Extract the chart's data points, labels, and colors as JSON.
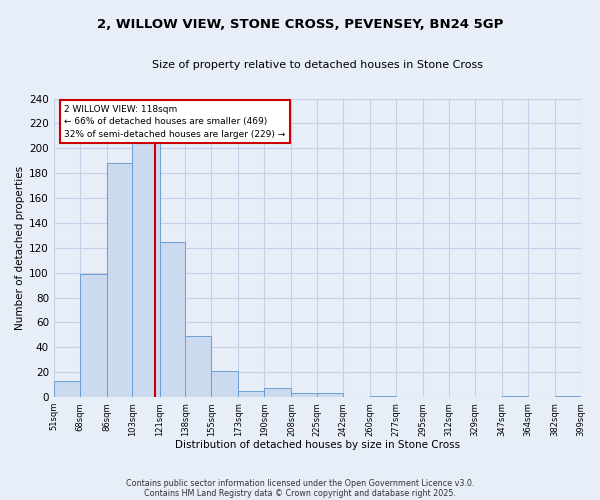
{
  "title_line1": "2, WILLOW VIEW, STONE CROSS, PEVENSEY, BN24 5GP",
  "title_line2": "Size of property relative to detached houses in Stone Cross",
  "xlabel": "Distribution of detached houses by size in Stone Cross",
  "ylabel": "Number of detached properties",
  "bins": [
    51,
    68,
    86,
    103,
    121,
    138,
    155,
    173,
    190,
    208,
    225,
    242,
    260,
    277,
    295,
    312,
    329,
    347,
    364,
    382,
    399
  ],
  "counts": [
    13,
    99,
    188,
    227,
    125,
    49,
    21,
    5,
    7,
    3,
    3,
    0,
    1,
    0,
    0,
    0,
    0,
    1,
    0,
    1
  ],
  "bar_color": "#ccdaf0",
  "bar_edge_color": "#6b9fd4",
  "grid_color": "#c5d0e8",
  "background_color": "#e8eef8",
  "vline_x": 118,
  "vline_color": "#cc0000",
  "annotation_text": "2 WILLOW VIEW: 118sqm\n← 66% of detached houses are smaller (469)\n32% of semi-detached houses are larger (229) →",
  "annotation_box_color": "#ffffff",
  "annotation_box_edge": "#cc0000",
  "ylim": [
    0,
    240
  ],
  "yticks": [
    0,
    20,
    40,
    60,
    80,
    100,
    120,
    140,
    160,
    180,
    200,
    220,
    240
  ],
  "footnote_line1": "Contains HM Land Registry data © Crown copyright and database right 2025.",
  "footnote_line2": "Contains public sector information licensed under the Open Government Licence v3.0."
}
